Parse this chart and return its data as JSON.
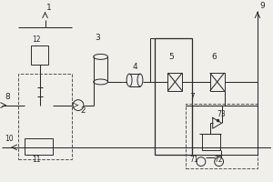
{
  "bg_color": "#f0efea",
  "line_color": "#2a2a2a",
  "dashed_color": "#555555",
  "fig_w": 3.0,
  "fig_h": 2.0,
  "dpi": 100
}
